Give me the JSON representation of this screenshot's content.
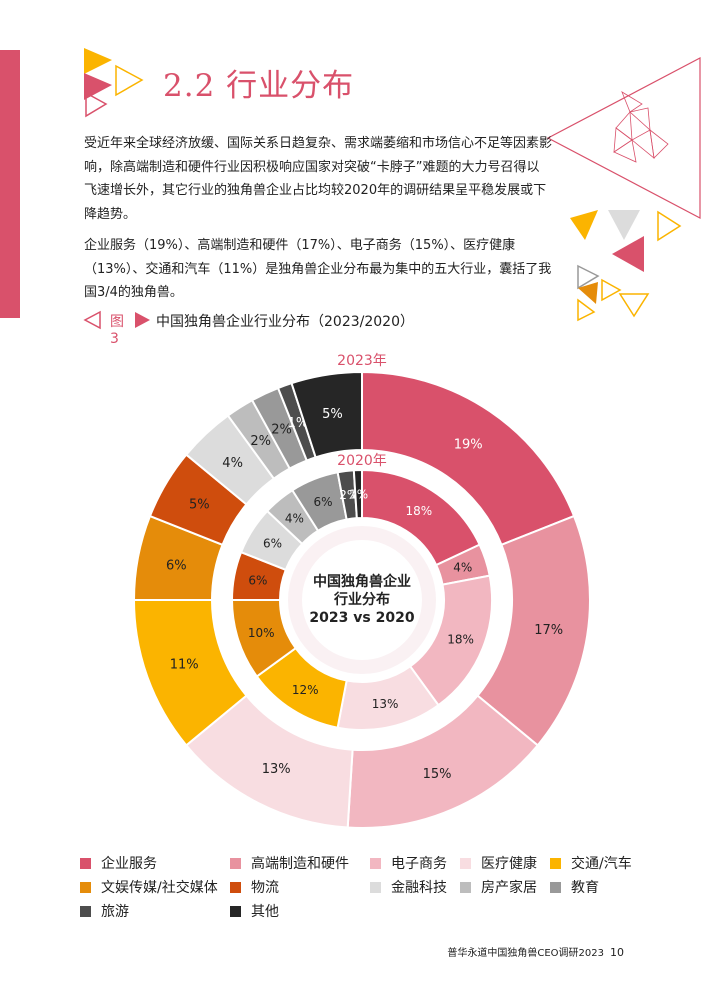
{
  "section": {
    "number": "2.2",
    "title": "行业分布"
  },
  "paragraphs": [
    "受近年来全球经济放缓、国际关系日趋复杂、需求端萎缩和市场信心不足等因素影响，除高端制造和硬件行业因积极响应国家对突破“卡脖子”难题的大力号召得以飞速增长外，其它行业的独角兽企业占比均较2020年的调研结果呈平稳发展或下降趋势。",
    "企业服务（19%）、高端制造和硬件（17%）、电子商务（15%）、医疗健康（13%）、交通和汽车（11%）是独角兽企业分布最为集中的五大行业，囊括了我国3/4的独角兽。"
  ],
  "figure": {
    "number": "图3",
    "title": "中国独角兽企业行业分布（2023/2020）"
  },
  "chart_data": {
    "type": "donut",
    "title": "中国独角兽企业行业分布（2023/2020）",
    "center_label": [
      "中国独角兽企业",
      "行业分布",
      "2023 vs 2020"
    ],
    "categories": [
      "企业服务",
      "高端制造和硬件",
      "电子商务",
      "医疗健康",
      "交通/汽车",
      "文娱传媒/社交媒体",
      "物流",
      "金融科技",
      "房产家居",
      "教育",
      "旅游",
      "其他"
    ],
    "colors": [
      "#d9516b",
      "#e8929f",
      "#f2b7c1",
      "#f8dde1",
      "#fbb400",
      "#e58c0a",
      "#cf4d0d",
      "#dcdcdc",
      "#bdbdbd",
      "#999999",
      "#4d4d4d",
      "#262626"
    ],
    "series": [
      {
        "name": "2023年",
        "values": [
          19,
          17,
          15,
          13,
          11,
          6,
          5,
          4,
          2,
          2,
          1,
          5
        ]
      },
      {
        "name": "2020年",
        "values": [
          18,
          4,
          18,
          13,
          12,
          10,
          6,
          6,
          4,
          6,
          2,
          1
        ]
      }
    ]
  },
  "legend_rows": [
    [
      "企业服务",
      "高端制造和硬件",
      "电子商务",
      "医疗健康",
      "交通/汽车"
    ],
    [
      "文娱传媒/社交媒体",
      "物流",
      "金融科技",
      "房产家居",
      "教育"
    ],
    [
      "旅游",
      "其他"
    ]
  ],
  "footer": {
    "text": "普华永道中国独角兽CEO调研2023",
    "page": "10"
  }
}
